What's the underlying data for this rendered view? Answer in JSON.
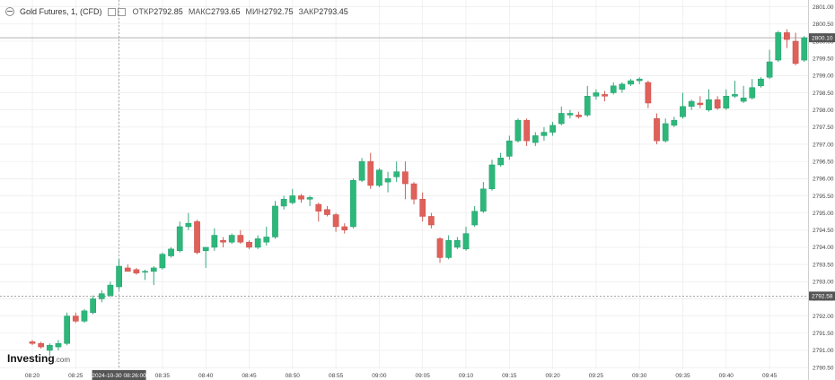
{
  "header": {
    "symbol": "Gold Futures, 1, (CFD)",
    "open_label": "ОТКР",
    "open": "2792.85",
    "high_label": "МАКС",
    "high": "2793.65",
    "low_label": "МИН",
    "low": "2792.75",
    "close_label": "ЗАКР",
    "close": "2793.45"
  },
  "logo": {
    "main": "Investing",
    "suffix": ".com"
  },
  "colors": {
    "up": "#26a69a",
    "up_fill": "#2db87a",
    "down": "#e0605a",
    "grid": "#e8e8e8",
    "tag": "#555555"
  },
  "chart_data": {
    "type": "candlestick",
    "ylim": [
      2790.45,
      2801.2
    ],
    "y_ticks": [
      "2801.00",
      "2800.50",
      "2800.00",
      "2799.50",
      "2799.00",
      "2798.50",
      "2798.00",
      "2797.50",
      "2797.00",
      "2796.50",
      "2796.00",
      "2795.50",
      "2795.00",
      "2794.50",
      "2794.00",
      "2793.50",
      "2793.00",
      "2792.50",
      "2792.00",
      "2791.50",
      "2791.00",
      "2790.50"
    ],
    "x_ticks": [
      "08:20",
      "08:25",
      "08:30",
      "08:35",
      "08:40",
      "08:45",
      "08:50",
      "08:55",
      "09:00",
      "09:05",
      "09:10",
      "09:15",
      "09:20",
      "09:25",
      "09:30",
      "09:35",
      "09:40",
      "09:45"
    ],
    "crosshair": {
      "time_label": "2024-10-30 08:26:00",
      "price_label": "2792.58"
    },
    "last_price_label": "2800.10",
    "candles": [
      [
        2791.25,
        2791.3,
        2791.15,
        2791.2
      ],
      [
        2791.2,
        2791.25,
        2791.05,
        2791.1
      ],
      [
        2791.0,
        2791.2,
        2790.85,
        2791.15
      ],
      [
        2791.1,
        2791.3,
        2791.0,
        2791.2
      ],
      [
        2791.2,
        2792.1,
        2791.15,
        2792.0
      ],
      [
        2792.0,
        2792.1,
        2791.8,
        2791.85
      ],
      [
        2791.85,
        2792.2,
        2791.8,
        2792.15
      ],
      [
        2792.1,
        2792.6,
        2792.05,
        2792.5
      ],
      [
        2792.5,
        2792.75,
        2792.4,
        2792.65
      ],
      [
        2792.6,
        2793.0,
        2792.55,
        2792.9
      ],
      [
        2792.85,
        2793.65,
        2792.75,
        2793.45
      ],
      [
        2793.4,
        2793.5,
        2793.3,
        2793.3
      ],
      [
        2793.35,
        2793.4,
        2793.2,
        2793.25
      ],
      [
        2793.3,
        2793.35,
        2793.05,
        2793.3
      ],
      [
        2793.3,
        2793.45,
        2792.9,
        2793.4
      ],
      [
        2793.4,
        2793.85,
        2793.35,
        2793.8
      ],
      [
        2793.75,
        2794.0,
        2793.7,
        2793.95
      ],
      [
        2793.9,
        2794.75,
        2793.85,
        2794.6
      ],
      [
        2794.6,
        2795.0,
        2794.5,
        2794.7
      ],
      [
        2794.75,
        2794.8,
        2793.8,
        2793.85
      ],
      [
        2793.9,
        2794.0,
        2793.4,
        2794.0
      ],
      [
        2794.0,
        2794.55,
        2793.9,
        2794.35
      ],
      [
        2794.2,
        2794.3,
        2794.0,
        2794.15
      ],
      [
        2794.15,
        2794.4,
        2794.1,
        2794.35
      ],
      [
        2794.35,
        2794.5,
        2794.1,
        2794.15
      ],
      [
        2794.15,
        2794.2,
        2793.95,
        2794.0
      ],
      [
        2794.0,
        2794.35,
        2793.95,
        2794.25
      ],
      [
        2794.15,
        2794.6,
        2794.05,
        2794.3
      ],
      [
        2794.3,
        2795.35,
        2794.25,
        2795.2
      ],
      [
        2795.2,
        2795.5,
        2795.1,
        2795.4
      ],
      [
        2795.3,
        2795.7,
        2795.25,
        2795.5
      ],
      [
        2795.5,
        2795.55,
        2795.3,
        2795.4
      ],
      [
        2795.4,
        2795.5,
        2795.2,
        2795.45
      ],
      [
        2795.25,
        2795.3,
        2794.75,
        2795.05
      ],
      [
        2795.1,
        2795.2,
        2794.9,
        2794.95
      ],
      [
        2794.95,
        2795.0,
        2794.45,
        2794.6
      ],
      [
        2794.6,
        2794.7,
        2794.4,
        2794.5
      ],
      [
        2794.6,
        2796.0,
        2794.55,
        2795.95
      ],
      [
        2795.95,
        2796.6,
        2795.9,
        2796.5
      ],
      [
        2796.5,
        2796.75,
        2795.7,
        2795.8
      ],
      [
        2795.8,
        2796.3,
        2795.75,
        2796.25
      ],
      [
        2795.9,
        2796.2,
        2795.6,
        2796.0
      ],
      [
        2796.05,
        2796.5,
        2795.9,
        2796.2
      ],
      [
        2796.2,
        2796.5,
        2795.4,
        2795.85
      ],
      [
        2795.85,
        2795.9,
        2795.25,
        2795.4
      ],
      [
        2795.4,
        2795.6,
        2794.75,
        2794.9
      ],
      [
        2794.9,
        2795.0,
        2794.55,
        2794.65
      ],
      [
        2794.25,
        2794.3,
        2793.55,
        2793.7
      ],
      [
        2793.7,
        2794.35,
        2793.65,
        2794.2
      ],
      [
        2794.0,
        2794.3,
        2793.95,
        2794.2
      ],
      [
        2793.95,
        2794.6,
        2793.9,
        2794.4
      ],
      [
        2794.65,
        2795.2,
        2794.6,
        2795.05
      ],
      [
        2795.05,
        2795.9,
        2795.0,
        2795.7
      ],
      [
        2795.7,
        2796.55,
        2795.65,
        2796.4
      ],
      [
        2796.4,
        2796.75,
        2796.35,
        2796.6
      ],
      [
        2796.65,
        2797.25,
        2796.55,
        2797.1
      ],
      [
        2797.1,
        2797.75,
        2797.05,
        2797.7
      ],
      [
        2797.7,
        2797.75,
        2796.95,
        2797.1
      ],
      [
        2797.05,
        2797.35,
        2796.95,
        2797.25
      ],
      [
        2797.25,
        2797.5,
        2797.1,
        2797.35
      ],
      [
        2797.35,
        2797.65,
        2797.25,
        2797.55
      ],
      [
        2797.6,
        2798.1,
        2797.55,
        2797.9
      ],
      [
        2797.85,
        2798.0,
        2797.75,
        2797.9
      ],
      [
        2797.85,
        2797.95,
        2797.75,
        2797.8
      ],
      [
        2797.85,
        2798.7,
        2797.8,
        2798.4
      ],
      [
        2798.4,
        2798.6,
        2798.3,
        2798.5
      ],
      [
        2798.45,
        2798.55,
        2798.25,
        2798.4
      ],
      [
        2798.5,
        2798.8,
        2798.45,
        2798.7
      ],
      [
        2798.6,
        2798.8,
        2798.5,
        2798.75
      ],
      [
        2798.75,
        2798.9,
        2798.7,
        2798.85
      ],
      [
        2798.85,
        2798.95,
        2798.75,
        2798.9
      ],
      [
        2798.8,
        2798.85,
        2798.05,
        2798.2
      ],
      [
        2797.75,
        2797.9,
        2797.0,
        2797.1
      ],
      [
        2797.1,
        2797.75,
        2797.05,
        2797.6
      ],
      [
        2797.55,
        2797.8,
        2797.5,
        2797.7
      ],
      [
        2797.8,
        2798.5,
        2797.75,
        2798.1
      ],
      [
        2798.1,
        2798.3,
        2798.0,
        2798.25
      ],
      [
        2798.2,
        2798.4,
        2798.05,
        2798.15
      ],
      [
        2798.0,
        2798.6,
        2797.95,
        2798.3
      ],
      [
        2798.3,
        2798.4,
        2798.0,
        2798.05
      ],
      [
        2798.05,
        2798.6,
        2798.0,
        2798.4
      ],
      [
        2798.4,
        2798.85,
        2798.35,
        2798.45
      ],
      [
        2798.25,
        2798.7,
        2798.2,
        2798.35
      ],
      [
        2798.35,
        2798.9,
        2798.3,
        2798.65
      ],
      [
        2798.7,
        2798.95,
        2798.65,
        2798.9
      ],
      [
        2798.95,
        2799.75,
        2798.9,
        2799.4
      ],
      [
        2799.45,
        2800.3,
        2799.4,
        2800.25
      ],
      [
        2800.25,
        2800.35,
        2799.8,
        2800.05
      ],
      [
        2800.0,
        2800.25,
        2799.3,
        2799.35
      ],
      [
        2799.45,
        2800.15,
        2799.4,
        2800.1
      ]
    ]
  }
}
